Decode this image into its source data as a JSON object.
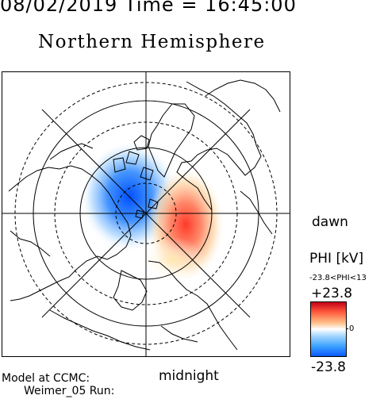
{
  "header": {
    "text": "08/02/2019 Time = 16:45:00"
  },
  "title": "Northern Hemisphere",
  "labels": {
    "dawn": "dawn",
    "midnight": "midnight"
  },
  "colorbar": {
    "title": "PHI [kV]",
    "range_text": "-23.8<PHI<13",
    "max_label": "+23.8",
    "zero_label": "0",
    "min_label": "-23.8",
    "colors": {
      "max": "#c4001a",
      "mid": "#ffffff",
      "min": "#0a5aff"
    }
  },
  "footer": {
    "model": "Model at CCMC:",
    "run": "Weimer_05 Run:"
  },
  "map": {
    "projection": "north-polar-stereographic",
    "dawn_cell_color": "#ff4a3a",
    "dusk_cell_color": "#1a6aff"
  }
}
